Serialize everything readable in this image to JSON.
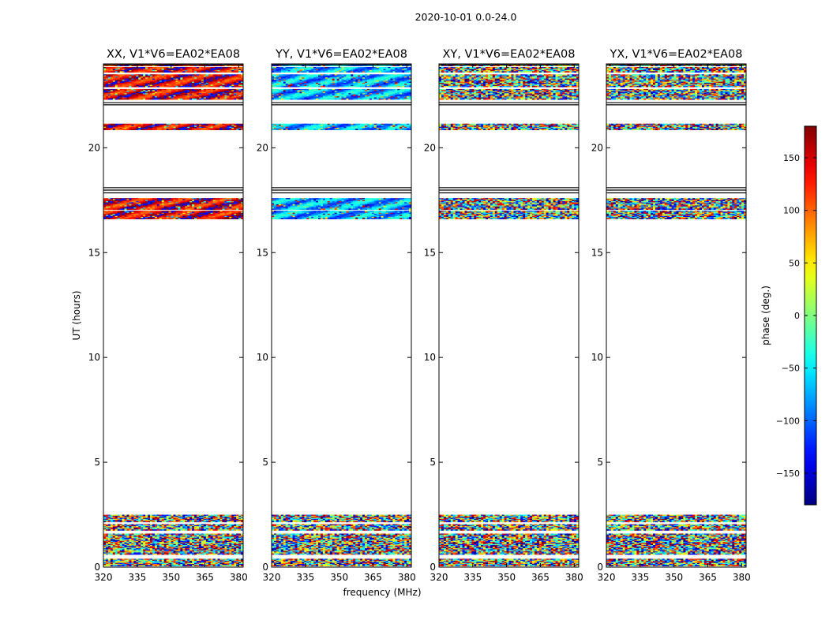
{
  "title": "2020-10-01 0.0-24.0",
  "xlabel": "frequency (MHz)",
  "ylabel": "UT (hours)",
  "colorbar": {
    "label": "phase (deg.)",
    "range": [
      -180,
      180
    ],
    "ticks": [
      "150",
      "100",
      "50",
      "0",
      "−50",
      "−100",
      "−150"
    ],
    "tick_values": [
      150,
      100,
      50,
      0,
      -50,
      -100,
      -150
    ],
    "colormap": "jet"
  },
  "chart_data": [
    {
      "type": "heatmap",
      "title": "XX, V1*V6=EA02*EA08",
      "xlim": [
        320,
        382
      ],
      "ylim": [
        0,
        24
      ],
      "xticks": [
        320,
        335,
        350,
        365,
        380
      ],
      "yticks": [
        0,
        5,
        10,
        15,
        20
      ],
      "data_bands_hours": [
        [
          0.05,
          0.4
        ],
        [
          0.6,
          1.6
        ],
        [
          1.75,
          2.05
        ],
        [
          2.15,
          2.5
        ],
        [
          16.6,
          17.0
        ],
        [
          17.05,
          17.6
        ],
        [
          20.85,
          21.15
        ],
        [
          22.3,
          22.8
        ],
        [
          22.9,
          23.5
        ],
        [
          23.6,
          23.85
        ],
        [
          23.9,
          24.0
        ]
      ],
      "phase_pattern": "noisy at 0-2.5h; mostly red/orange (~150 to 180 deg) near 17h and 23-24h"
    },
    {
      "type": "heatmap",
      "title": "YY, V1*V6=EA02*EA08",
      "xlim": [
        320,
        382
      ],
      "ylim": [
        0,
        24
      ],
      "xticks": [
        320,
        335,
        350,
        365,
        380
      ],
      "yticks": [
        0,
        5,
        10,
        15,
        20
      ],
      "data_bands_hours": [
        [
          0.05,
          0.4
        ],
        [
          0.6,
          1.6
        ],
        [
          1.75,
          2.05
        ],
        [
          2.15,
          2.5
        ],
        [
          16.6,
          17.0
        ],
        [
          17.05,
          17.6
        ],
        [
          20.85,
          21.15
        ],
        [
          22.3,
          22.8
        ],
        [
          22.9,
          23.5
        ],
        [
          23.6,
          23.85
        ],
        [
          23.9,
          24.0
        ]
      ],
      "phase_pattern": "noisy at 0-2.5h; mostly cyan/blue (~-60 to -120 deg) near 17h and 23-24h"
    },
    {
      "type": "heatmap",
      "title": "XY, V1*V6=EA02*EA08",
      "xlim": [
        320,
        382
      ],
      "ylim": [
        0,
        24
      ],
      "xticks": [
        320,
        335,
        350,
        365,
        380
      ],
      "yticks": [
        0,
        5,
        10,
        15,
        20
      ],
      "data_bands_hours": [
        [
          0.05,
          0.4
        ],
        [
          0.6,
          1.6
        ],
        [
          1.75,
          2.05
        ],
        [
          2.15,
          2.5
        ],
        [
          16.6,
          17.0
        ],
        [
          17.05,
          17.6
        ],
        [
          20.85,
          21.15
        ],
        [
          22.3,
          22.8
        ],
        [
          22.9,
          23.5
        ],
        [
          23.6,
          23.85
        ],
        [
          23.9,
          24.0
        ]
      ],
      "phase_pattern": "noisy (random phase) in all bands"
    },
    {
      "type": "heatmap",
      "title": "YX, V1*V6=EA02*EA08",
      "xlim": [
        320,
        382
      ],
      "ylim": [
        0,
        24
      ],
      "xticks": [
        320,
        335,
        350,
        365,
        380
      ],
      "yticks": [
        0,
        5,
        10,
        15,
        20
      ],
      "data_bands_hours": [
        [
          0.05,
          0.4
        ],
        [
          0.6,
          1.6
        ],
        [
          1.75,
          2.05
        ],
        [
          2.15,
          2.5
        ],
        [
          16.6,
          17.0
        ],
        [
          17.05,
          17.6
        ],
        [
          20.85,
          21.15
        ],
        [
          22.3,
          22.8
        ],
        [
          22.9,
          23.5
        ],
        [
          23.6,
          23.85
        ],
        [
          23.9,
          24.0
        ]
      ],
      "phase_pattern": "noisy (random phase) in all bands"
    }
  ]
}
